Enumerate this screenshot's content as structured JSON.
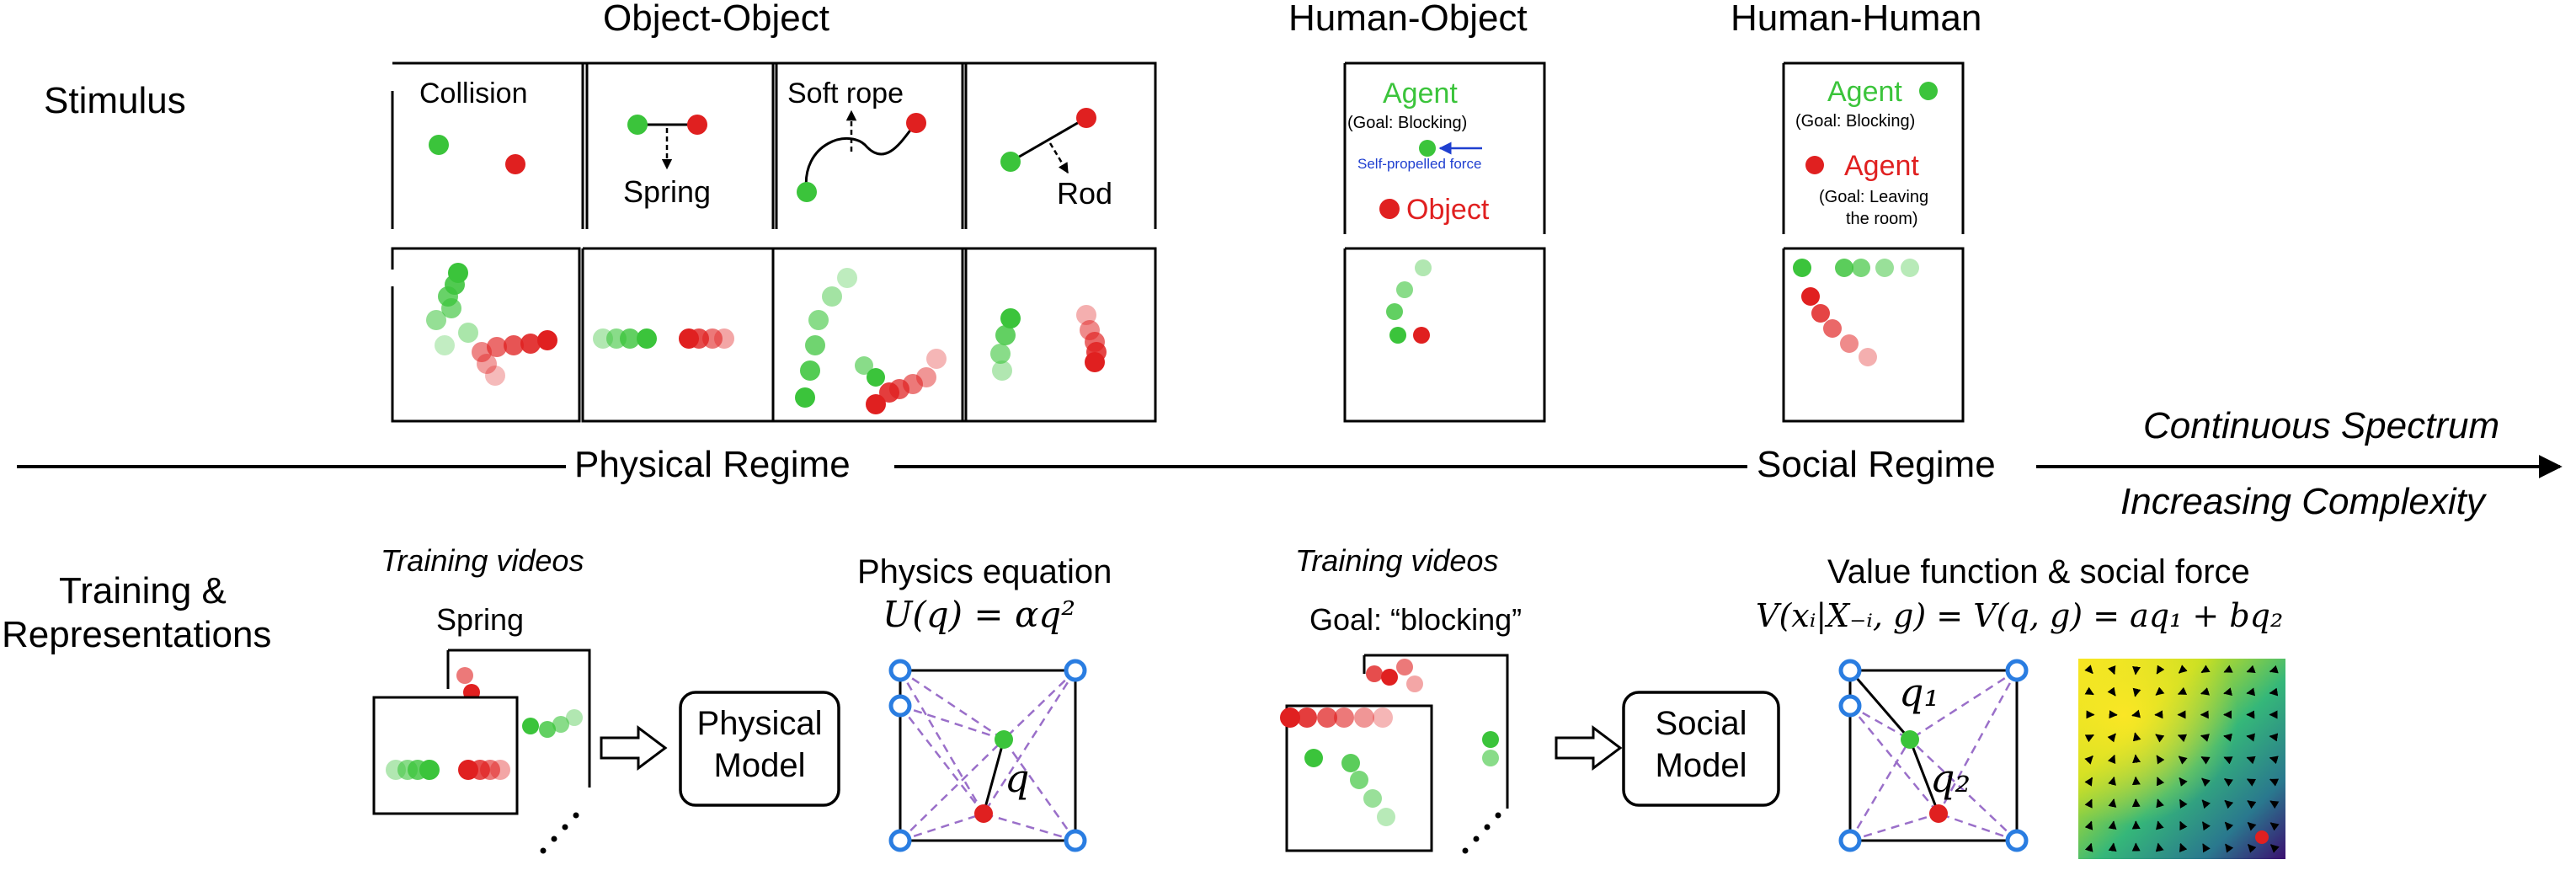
{
  "rows": {
    "stimulus": "Stimulus",
    "training_line1": "Training &",
    "training_line2": "Representations"
  },
  "groups": {
    "object_object": "Object-Object",
    "human_object": "Human-Object",
    "human_human": "Human-Human"
  },
  "panels": {
    "collision": "Collision",
    "spring": "Spring",
    "soft_rope": "Soft rope",
    "rod": "Rod",
    "ho_agent": "Agent",
    "ho_goal": "(Goal: Blocking)",
    "ho_force": "Self-propelled force",
    "ho_object": "Object",
    "hh_agent1": "Agent",
    "hh_goal1": "(Goal: Blocking)",
    "hh_agent2": "Agent",
    "hh_goal2_line1": "(Goal: Leaving",
    "hh_goal2_line2": "the room)"
  },
  "axis": {
    "physical_regime": "Physical Regime",
    "social_regime": "Social Regime",
    "continuous_spectrum": "Continuous Spectrum",
    "increasing_complexity": "Increasing Complexity"
  },
  "training": {
    "videos_label_left": "Training videos",
    "spring_label": "Spring",
    "physical_model_line1": "Physical",
    "physical_model_line2": "Model",
    "physics_equation_title": "Physics equation",
    "physics_equation": "U(q) = αq²",
    "q_label": "q",
    "videos_label_right": "Training videos",
    "goal_label": "Goal: “blocking”",
    "social_model_line1": "Social",
    "social_model_line2": "Model",
    "value_function_title": "Value function & social force",
    "value_equation": "V(xᵢ|X₋ᵢ, g) = V(q, g) = aq₁ + bq₂",
    "q1_label": "q₁",
    "q2_label": "q₂"
  },
  "colors": {
    "agent_green": "#3bc43b",
    "object_red": "#e02020",
    "force_blue": "#1f3fd0",
    "corner_blue": "#2a7de1",
    "dashed_purple": "#9a6fc9"
  },
  "icons": {
    "arrow_right_outline": "hollow-right-arrow",
    "ellipsis": "diagonal-dots"
  }
}
